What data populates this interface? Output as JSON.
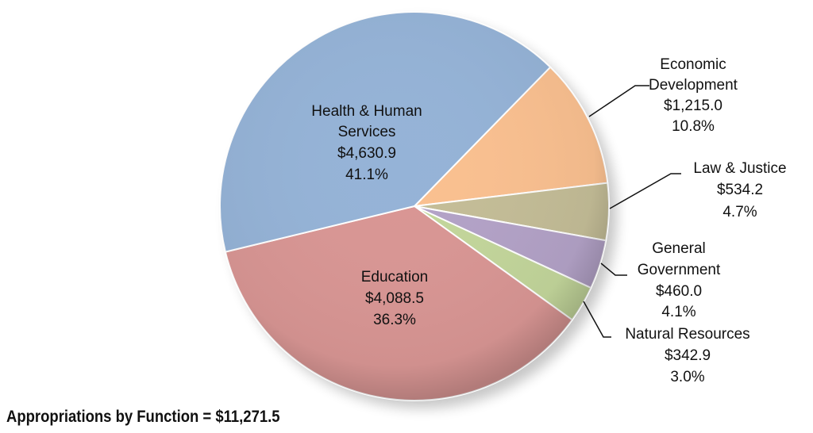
{
  "chart_data": {
    "type": "pie",
    "title": "Appropriations by Function = $11,271.5",
    "start_angle_deg": 44.3,
    "direction": "clockwise",
    "slices": [
      {
        "label": [
          "Economic",
          "Development"
        ],
        "value_text": "$1,215.0",
        "pct_text": "10.8%",
        "value": 1215.0,
        "pct": 10.8,
        "color": "#fac090"
      },
      {
        "label": [
          "Law & Justice"
        ],
        "value_text": "$534.2",
        "pct_text": "4.7%",
        "value": 534.2,
        "pct": 4.7,
        "color": "#c4bd97"
      },
      {
        "label": [
          "General",
          "Government"
        ],
        "value_text": "$460.0",
        "pct_text": "4.1%",
        "value": 460.0,
        "pct": 4.1,
        "color": "#b3a2c7"
      },
      {
        "label": [
          "Natural Resources"
        ],
        "value_text": "$342.9",
        "pct_text": "3.0%",
        "value": 342.9,
        "pct": 3.0,
        "color": "#c3d69b"
      },
      {
        "label": [
          "Education"
        ],
        "value_text": "$4,088.5",
        "pct_text": "36.3%",
        "value": 4088.5,
        "pct": 36.3,
        "color": "#d99694"
      },
      {
        "label": [
          "Health & Human",
          "Services"
        ],
        "value_text": "$4,630.9",
        "pct_text": "41.1%",
        "value": 4630.9,
        "pct": 41.1,
        "color": "#95b3d7"
      }
    ]
  }
}
